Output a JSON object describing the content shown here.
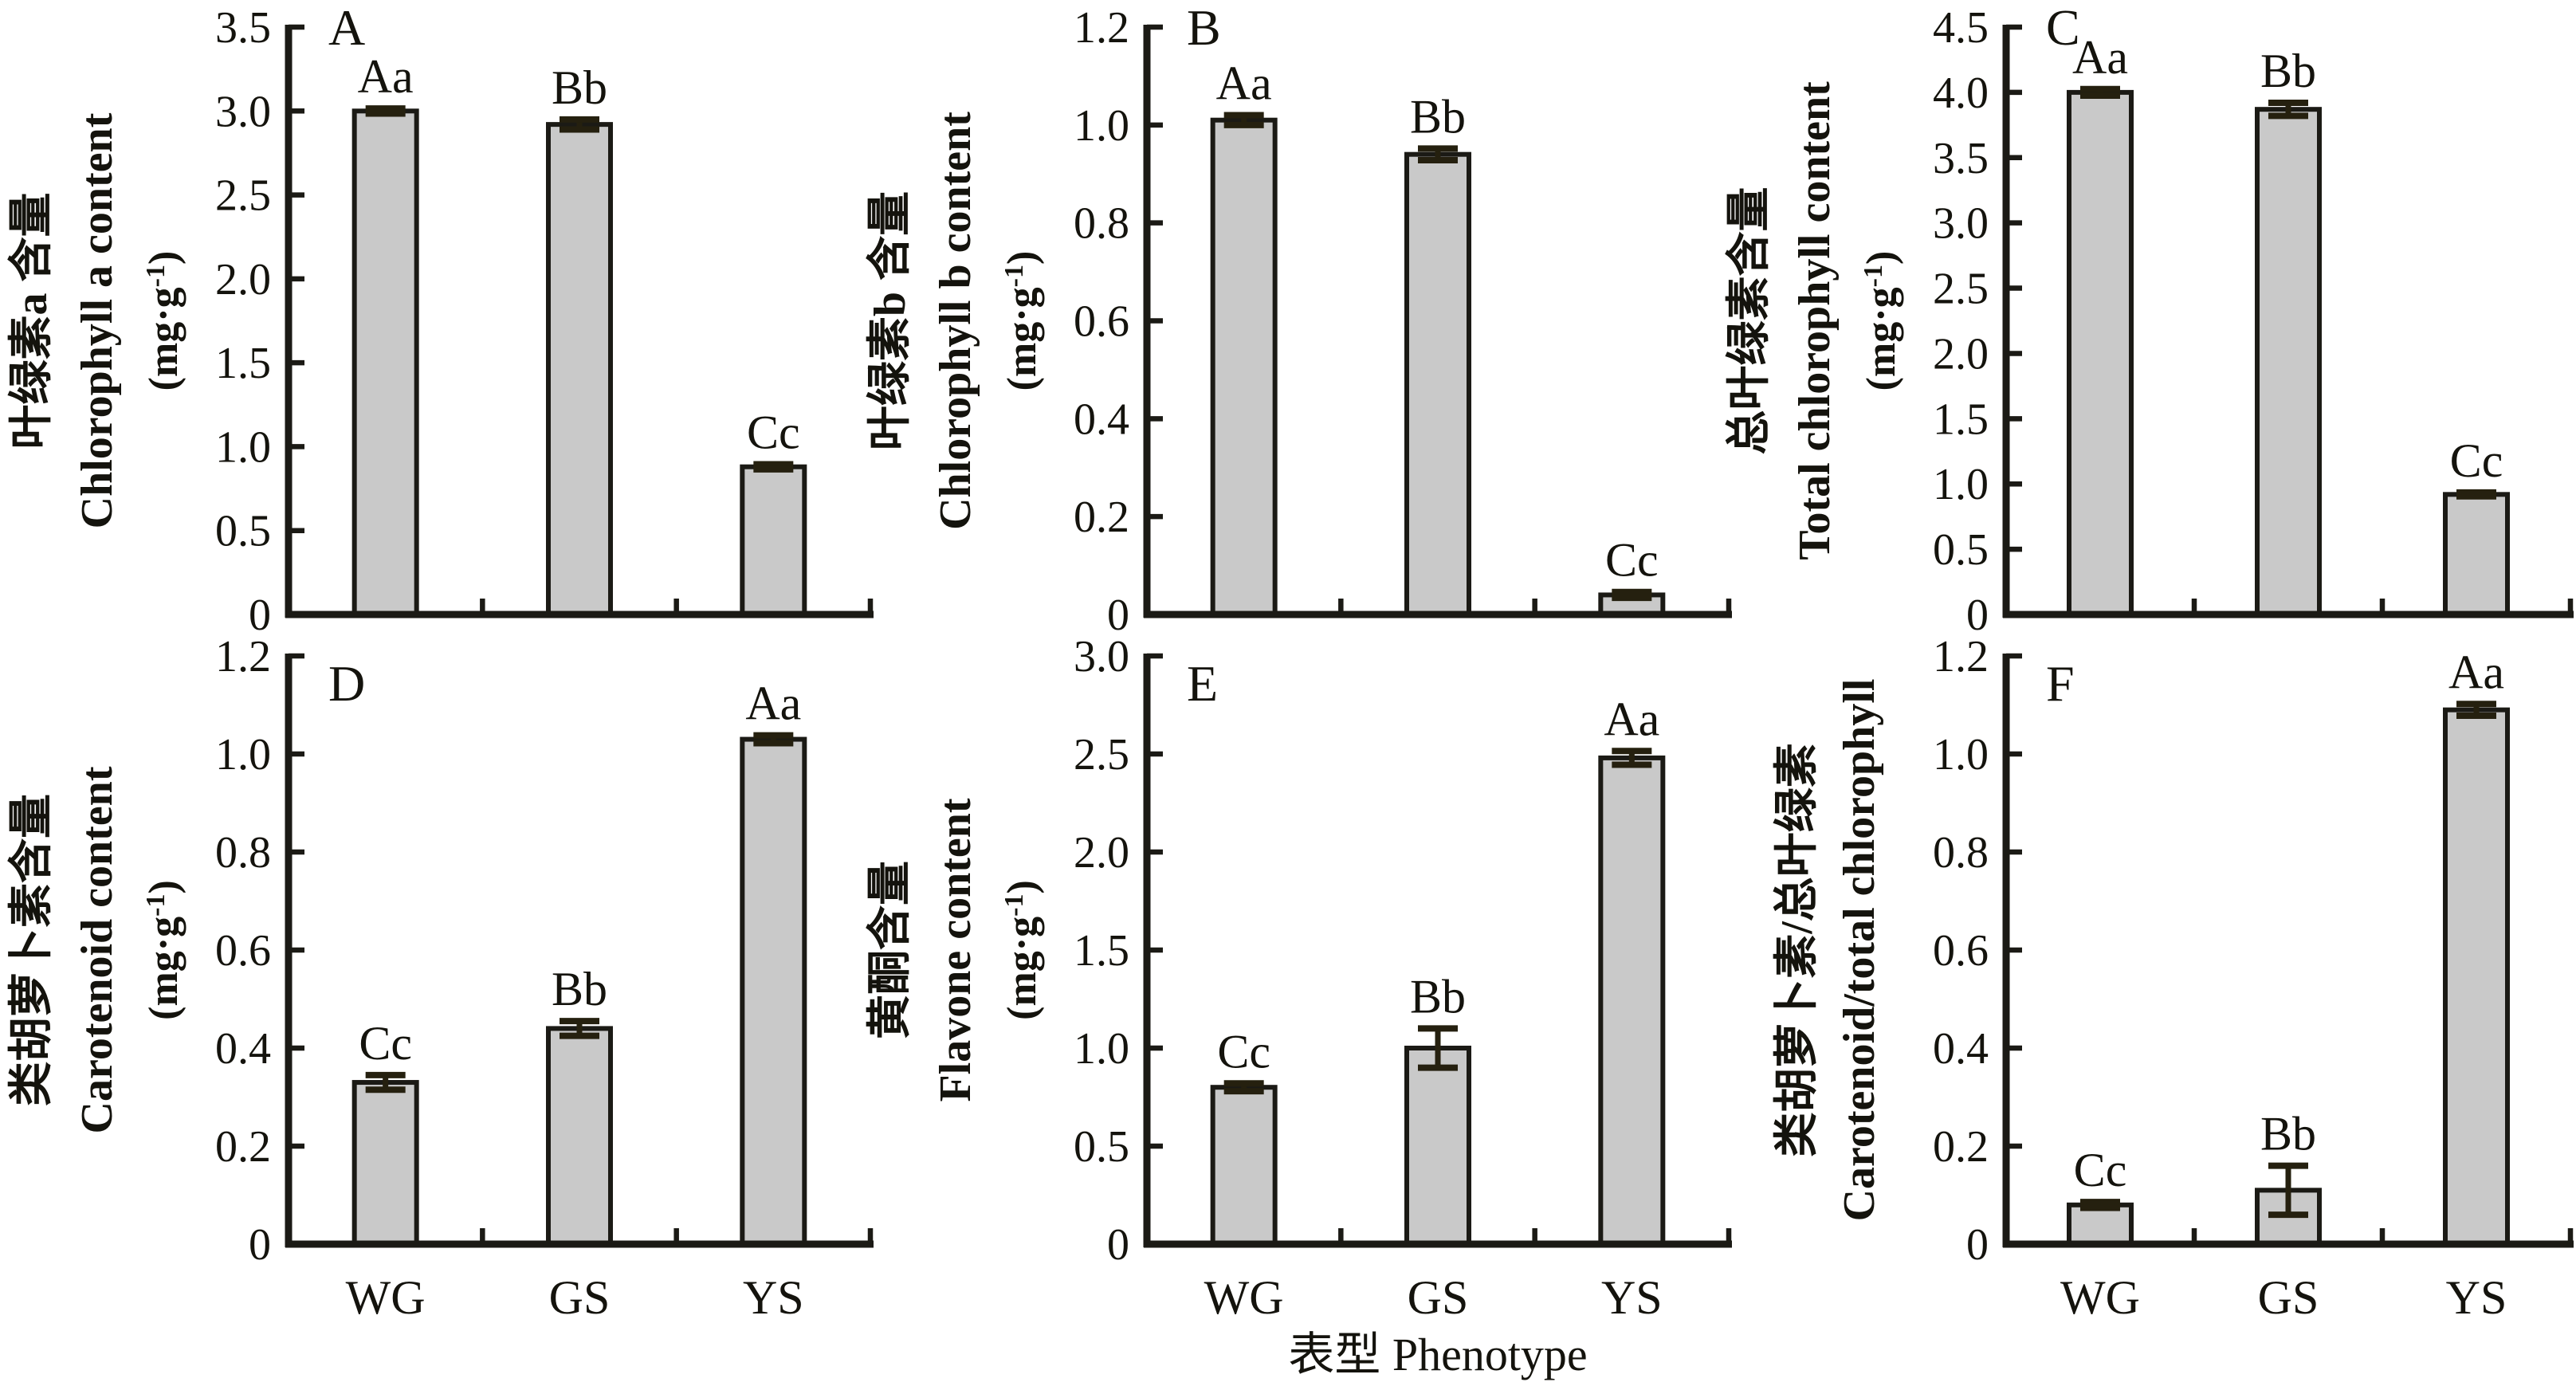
{
  "figure": {
    "x_axis_title": "表型 Phenotype",
    "categories": [
      "WG",
      "GS",
      "YS"
    ],
    "colors": {
      "bar_fill": "#c9c9c9",
      "bar_border": "#1b1a15",
      "axis": "#1b1a15",
      "error_bar": "#25200f",
      "text": "#14130d"
    }
  },
  "chart_data": [
    {
      "type": "bar",
      "panel": "A",
      "title_zh": "叶绿素a 含量",
      "title_en": "Chlorophyll a content",
      "unit_parts": [
        "(mg·g",
        "-1",
        ")"
      ],
      "categories": [
        "WG",
        "GS",
        "YS"
      ],
      "values": [
        3.0,
        2.92,
        0.88
      ],
      "errors": [
        0.015,
        0.03,
        0.015
      ],
      "sig_labels": [
        "Aa",
        "Bb",
        "Cc"
      ],
      "ylim": [
        0,
        3.5
      ],
      "ytick_step": 0.5,
      "ytick_labels": [
        "0",
        "0.5",
        "1.0",
        "1.5",
        "2.0",
        "2.5",
        "3.0",
        "3.5"
      ],
      "grid": false,
      "legend": null
    },
    {
      "type": "bar",
      "panel": "B",
      "title_zh": "叶绿素b 含量",
      "title_en": "Chlorophyll b content",
      "unit_parts": [
        "(mg·g",
        "-1",
        ")"
      ],
      "categories": [
        "WG",
        "GS",
        "YS"
      ],
      "values": [
        1.01,
        0.94,
        0.04
      ],
      "errors": [
        0.01,
        0.012,
        0.006
      ],
      "sig_labels": [
        "Aa",
        "Bb",
        "Cc"
      ],
      "ylim": [
        0,
        1.2
      ],
      "ytick_step": 0.2,
      "ytick_labels": [
        "0",
        "0.2",
        "0.4",
        "0.6",
        "0.8",
        "1.0",
        "1.2"
      ],
      "grid": false,
      "legend": null
    },
    {
      "type": "bar",
      "panel": "C",
      "title_zh": "总叶绿素含量",
      "title_en": "Total chlorophyll content",
      "unit_parts": [
        "(mg·g",
        "-1",
        ")"
      ],
      "categories": [
        "WG",
        "GS",
        "YS"
      ],
      "values": [
        4.0,
        3.87,
        0.92
      ],
      "errors": [
        0.025,
        0.05,
        0.015
      ],
      "sig_labels": [
        "Aa",
        "Bb",
        "Cc"
      ],
      "ylim": [
        0,
        4.5
      ],
      "ytick_step": 0.5,
      "ytick_labels": [
        "0",
        "0.5",
        "1.0",
        "1.5",
        "2.0",
        "2.5",
        "3.0",
        "3.5",
        "4.0",
        "4.5"
      ],
      "grid": false,
      "legend": null
    },
    {
      "type": "bar",
      "panel": "D",
      "title_zh": "类胡萝卜素含量",
      "title_en": "Carotenoid content",
      "unit_parts": [
        "(mg·g",
        "-1",
        ")"
      ],
      "categories": [
        "WG",
        "GS",
        "YS"
      ],
      "values": [
        0.33,
        0.44,
        1.03
      ],
      "errors": [
        0.015,
        0.015,
        0.008
      ],
      "sig_labels": [
        "Cc",
        "Bb",
        "Aa"
      ],
      "ylim": [
        0,
        1.2
      ],
      "ytick_step": 0.2,
      "ytick_labels": [
        "0",
        "0.2",
        "0.4",
        "0.6",
        "0.8",
        "1.0",
        "1.2"
      ],
      "grid": false,
      "legend": null
    },
    {
      "type": "bar",
      "panel": "E",
      "title_zh": "黄酮含量",
      "title_en": "Flavone content",
      "unit_parts": [
        "(mg·g",
        "-1",
        ")"
      ],
      "categories": [
        "WG",
        "GS",
        "YS"
      ],
      "values": [
        0.8,
        1.0,
        2.48
      ],
      "errors": [
        0.02,
        0.1,
        0.035
      ],
      "sig_labels": [
        "Cc",
        "Bb",
        "Aa"
      ],
      "ylim": [
        0,
        3.0
      ],
      "ytick_step": 0.5,
      "ytick_labels": [
        "0",
        "0.5",
        "1.0",
        "1.5",
        "2.0",
        "2.5",
        "3.0"
      ],
      "grid": false,
      "legend": null
    },
    {
      "type": "bar",
      "panel": "F",
      "title_zh": "类胡萝卜素/总叶绿素",
      "title_en": "Carotenoid/total chlorophyll",
      "unit_parts": null,
      "categories": [
        "WG",
        "GS",
        "YS"
      ],
      "values": [
        0.08,
        0.11,
        1.09
      ],
      "errors": [
        0.006,
        0.05,
        0.012
      ],
      "sig_labels": [
        "Cc",
        "Bb",
        "Aa"
      ],
      "ylim": [
        0,
        1.2
      ],
      "ytick_step": 0.2,
      "ytick_labels": [
        "0",
        "0.2",
        "0.4",
        "0.6",
        "0.8",
        "1.0",
        "1.2"
      ],
      "grid": false,
      "legend": null
    }
  ]
}
